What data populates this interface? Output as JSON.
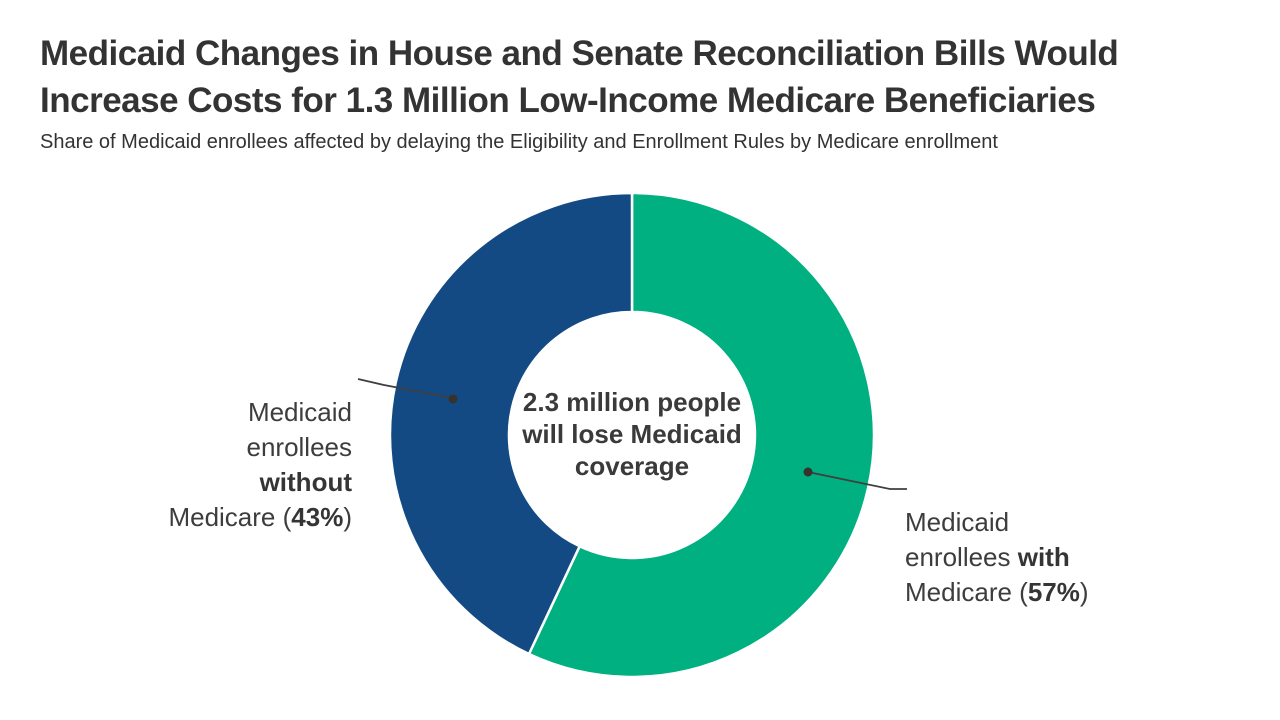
{
  "header": {
    "title": "Medicaid Changes in House and Senate Reconciliation Bills Would\nIncrease Costs for 1.3 Million Low-Income Medicare Beneficiaries",
    "subtitle": "Share of Medicaid enrollees affected by delaying the Eligibility and Enrollment Rules by Medicare enrollment"
  },
  "chart_data": {
    "type": "pie",
    "subtype": "donut",
    "title": "Medicaid Changes in House and Senate Reconciliation Bills Would Increase Costs for 1.3 Million Low-Income Medicare Beneficiaries",
    "subtitle": "Share of Medicaid enrollees affected by delaying the Eligibility and Enrollment Rules by Medicare enrollment",
    "start_angle_deg": 0,
    "direction": "clockwise",
    "legend_position": "callout-labels",
    "slices": [
      {
        "label": "Medicaid enrollees with Medicare",
        "value_pct": 57,
        "color": "#00B081"
      },
      {
        "label": "Medicaid enrollees without Medicare",
        "value_pct": 43,
        "color": "#134A83"
      }
    ],
    "center_label": "2.3 million people\nwill lose Medicaid\ncoverage"
  },
  "callouts": {
    "left": {
      "pre": "Medicaid\nenrollees\n",
      "bold1": "without",
      "mid": "\nMedicare (",
      "bold2": "43%",
      "post": ")"
    },
    "right": {
      "pre": "Medicaid\nenrollees ",
      "bold1": "with",
      "mid": "\nMedicare (",
      "bold2": "57%",
      "post": ")"
    }
  },
  "colors": {
    "green_with_medicare": "#00B081",
    "navy_without_medicare": "#134A83",
    "text_dark": "#333333",
    "connector": "#3f3f3f"
  }
}
